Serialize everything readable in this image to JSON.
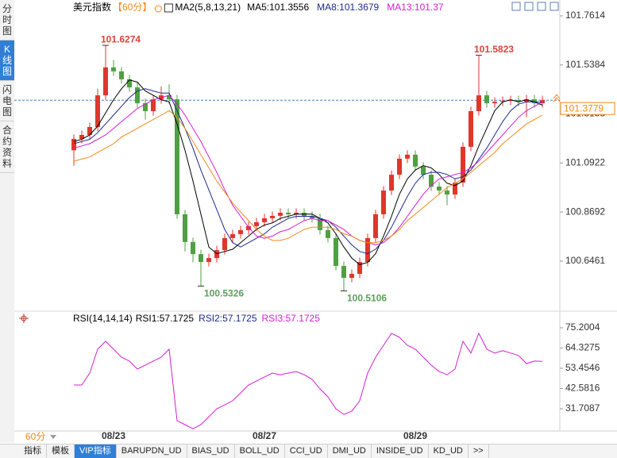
{
  "left_tabs": {
    "items": [
      "分时图",
      "K线图",
      "闪电图",
      "合约资料"
    ],
    "active": 1
  },
  "chart_data": [
    {
      "type": "candlestick",
      "title": "美元指数",
      "period": "【60分】",
      "indicator": "MA2(5,8,13,21)",
      "categories": [
        null,
        null,
        null,
        null,
        null,
        "08/23",
        null,
        null,
        null,
        null,
        null,
        null,
        null,
        null,
        null,
        null,
        null,
        null,
        null,
        null,
        null,
        null,
        null,
        null,
        "08/27",
        null,
        null,
        null,
        null,
        null,
        null,
        null,
        null,
        null,
        null,
        null,
        null,
        null,
        null,
        null,
        null,
        null,
        null,
        "08/29",
        null,
        null,
        null,
        null,
        null,
        null,
        null,
        null,
        null,
        null,
        null,
        null,
        null,
        null,
        null,
        null
      ],
      "candles": [
        [
          101.15,
          101.222,
          101.08,
          101.202
        ],
        [
          101.202,
          101.24,
          101.182,
          101.22
        ],
        [
          101.22,
          101.276,
          101.2,
          101.256
        ],
        [
          101.256,
          101.43,
          101.236,
          101.4
        ],
        [
          101.4,
          101.6274,
          101.38,
          101.527
        ],
        [
          101.527,
          101.56,
          101.489,
          101.509
        ],
        [
          101.509,
          101.529,
          101.453,
          101.473
        ],
        [
          101.473,
          101.493,
          101.416,
          101.436
        ],
        [
          101.436,
          101.456,
          101.344,
          101.364
        ],
        [
          101.364,
          101.384,
          101.29,
          101.328
        ],
        [
          101.328,
          101.402,
          101.308,
          101.382
        ],
        [
          101.382,
          101.44,
          101.362,
          101.4
        ],
        [
          101.4,
          101.45,
          101.362,
          101.382
        ],
        [
          101.382,
          101.402,
          100.839,
          100.859
        ],
        [
          100.859,
          100.879,
          100.69,
          100.733
        ],
        [
          100.733,
          100.753,
          100.64,
          100.678
        ],
        [
          100.678,
          100.698,
          100.5326,
          100.642
        ],
        [
          100.642,
          100.68,
          100.622,
          100.66
        ],
        [
          100.66,
          100.716,
          100.64,
          100.696
        ],
        [
          100.696,
          100.771,
          100.676,
          100.751
        ],
        [
          100.751,
          100.789,
          100.731,
          100.769
        ],
        [
          100.769,
          100.807,
          100.749,
          100.787
        ],
        [
          100.787,
          100.825,
          100.767,
          100.805
        ],
        [
          100.805,
          100.843,
          100.785,
          100.823
        ],
        [
          100.823,
          100.861,
          100.803,
          100.841
        ],
        [
          100.841,
          100.872,
          100.821,
          100.852
        ],
        [
          100.852,
          100.886,
          100.832,
          100.866
        ],
        [
          100.866,
          100.886,
          100.839,
          100.859
        ],
        [
          100.859,
          100.886,
          100.839,
          100.866
        ],
        [
          100.866,
          100.886,
          100.832,
          100.852
        ],
        [
          100.852,
          100.872,
          100.821,
          100.841
        ],
        [
          100.841,
          100.861,
          100.767,
          100.787
        ],
        [
          100.787,
          100.807,
          100.731,
          100.751
        ],
        [
          100.751,
          100.771,
          100.604,
          100.624
        ],
        [
          100.624,
          100.644,
          100.5106,
          100.57
        ],
        [
          100.57,
          100.608,
          100.55,
          100.588
        ],
        [
          100.588,
          100.662,
          100.568,
          100.642
        ],
        [
          100.642,
          100.771,
          100.622,
          100.751
        ],
        [
          100.751,
          100.879,
          100.731,
          100.859
        ],
        [
          100.859,
          100.987,
          100.839,
          100.967
        ],
        [
          100.967,
          101.059,
          100.947,
          101.039
        ],
        [
          101.039,
          101.132,
          101.019,
          101.112
        ],
        [
          101.112,
          101.15,
          101.092,
          101.13
        ],
        [
          101.13,
          101.15,
          101.056,
          101.076
        ],
        [
          101.076,
          101.096,
          101.019,
          101.039
        ],
        [
          101.039,
          101.059,
          100.965,
          100.985
        ],
        [
          100.985,
          101.005,
          100.947,
          100.967
        ],
        [
          100.967,
          100.987,
          100.9,
          100.949
        ],
        [
          100.949,
          101.023,
          100.929,
          101.003
        ],
        [
          101.003,
          101.186,
          100.983,
          101.166
        ],
        [
          101.166,
          101.348,
          101.146,
          101.328
        ],
        [
          101.328,
          101.5823,
          101.308,
          101.4
        ],
        [
          101.4,
          101.42,
          101.344,
          101.364
        ],
        [
          101.364,
          101.391,
          101.344,
          101.371
        ],
        [
          101.371,
          101.395,
          101.351,
          101.375
        ],
        [
          101.375,
          101.398,
          101.355,
          101.378
        ],
        [
          101.378,
          101.398,
          101.351,
          101.371
        ],
        [
          101.371,
          101.402,
          101.3,
          101.382
        ],
        [
          101.382,
          101.402,
          101.344,
          101.364
        ],
        [
          101.364,
          101.398,
          101.344,
          101.378
        ]
      ],
      "up_color": "#e0362c",
      "down_color": "#4ea042",
      "series": [
        {
          "name": "MA5:101.3556",
          "color": "#000000",
          "values": [
            101.19,
            101.2,
            101.22,
            101.26,
            101.32,
            101.38,
            101.43,
            101.47,
            101.46,
            101.42,
            101.4,
            101.38,
            101.37,
            101.27,
            101.15,
            101.01,
            100.86,
            100.71,
            100.68,
            100.69,
            100.7,
            100.73,
            100.76,
            100.79,
            100.81,
            100.82,
            100.84,
            100.85,
            100.86,
            100.86,
            100.86,
            100.84,
            100.82,
            100.77,
            100.71,
            100.66,
            100.63,
            100.64,
            100.68,
            100.76,
            100.85,
            100.95,
            101.02,
            101.06,
            101.08,
            101.07,
            101.04,
            101.0,
            100.99,
            101.01,
            101.08,
            101.17,
            101.25,
            101.33,
            101.37,
            101.38,
            101.37,
            101.38,
            101.37,
            101.3556
          ]
        },
        {
          "name": "MA8:101.3679",
          "color": "#1c2a8c",
          "values": [
            101.18,
            101.19,
            101.2,
            101.23,
            101.27,
            101.31,
            101.35,
            101.39,
            101.42,
            101.43,
            101.42,
            101.41,
            101.41,
            101.33,
            101.25,
            101.16,
            101.06,
            100.97,
            100.88,
            100.79,
            100.73,
            100.71,
            100.73,
            100.75,
            100.77,
            100.8,
            100.82,
            100.84,
            100.85,
            100.85,
            100.85,
            100.84,
            100.83,
            100.8,
            100.76,
            100.72,
            100.69,
            100.68,
            100.7,
            100.74,
            100.8,
            100.87,
            100.94,
            101.0,
            101.04,
            101.05,
            101.05,
            101.04,
            101.02,
            101.03,
            101.06,
            101.11,
            101.16,
            101.22,
            101.28,
            101.33,
            101.36,
            101.37,
            101.37,
            101.3679
          ]
        },
        {
          "name": "MA13:101.37",
          "color": "#d21fd2",
          "values": [
            101.16,
            101.17,
            101.18,
            101.2,
            101.22,
            101.25,
            101.28,
            101.31,
            101.34,
            101.36,
            101.38,
            101.39,
            101.4,
            101.36,
            101.31,
            101.25,
            101.19,
            101.12,
            101.05,
            100.97,
            100.9,
            100.85,
            100.8,
            100.76,
            100.75,
            100.76,
            100.78,
            100.79,
            100.81,
            100.83,
            100.84,
            100.83,
            100.83,
            100.81,
            100.79,
            100.76,
            100.74,
            100.73,
            100.72,
            100.73,
            100.76,
            100.8,
            100.85,
            100.9,
            100.95,
            100.99,
            101.02,
            101.03,
            101.04,
            101.05,
            101.07,
            101.1,
            101.14,
            101.18,
            101.22,
            101.26,
            101.3,
            101.33,
            101.35,
            101.37
          ]
        },
        {
          "color": "#f0891a",
          "values": [
            101.1,
            101.11,
            101.12,
            101.14,
            101.16,
            101.18,
            101.21,
            101.23,
            101.25,
            101.27,
            101.29,
            101.31,
            101.33,
            101.3,
            101.25,
            101.19,
            101.13,
            101.07,
            101.01,
            100.96,
            100.91,
            100.87,
            100.83,
            100.79,
            100.76,
            100.74,
            100.74,
            100.75,
            100.77,
            100.79,
            100.8,
            100.8,
            100.8,
            100.79,
            100.77,
            100.76,
            100.74,
            100.73,
            100.73,
            100.74,
            100.76,
            100.79,
            100.83,
            100.86,
            100.89,
            100.92,
            100.95,
            100.98,
            101.0,
            101.02,
            101.05,
            101.08,
            101.11,
            101.14,
            101.18,
            101.21,
            101.24,
            101.27,
            101.29,
            101.31
          ]
        }
      ],
      "ylim": [
        100.4257,
        101.783
      ],
      "yticks": [
        100.6461,
        100.8692,
        101.0922,
        101.3153,
        101.5384,
        101.7614
      ],
      "annotations": [
        {
          "value": 101.6274,
          "color": "#d8453b"
        },
        {
          "value": 101.5823,
          "color": "#d8453b"
        },
        {
          "value": 100.5326,
          "color": "#5aa05a"
        },
        {
          "value": 100.5106,
          "color": "#5aa05a"
        }
      ],
      "last_price": 101.3779,
      "last_price_color": "#f0891a"
    },
    {
      "type": "line",
      "title": "RSI(14,14,14)",
      "series": [
        {
          "name": "RSI1:57.1725",
          "color": "#000000"
        },
        {
          "name": "RSI2:57.1725",
          "color": "#1c2a8c"
        },
        {
          "name": "RSI3:57.1725",
          "color": "#d21fd2",
          "values": [
            44.5,
            44.5,
            50.9,
            63.7,
            67.9,
            63.7,
            59.4,
            57.3,
            53.0,
            55.2,
            57.3,
            59.4,
            63.7,
            25.3,
            23.2,
            21.0,
            23.2,
            27.4,
            31.7,
            33.8,
            36.0,
            40.2,
            44.5,
            46.6,
            48.8,
            50.9,
            50.0,
            50.9,
            51.7,
            50.0,
            47.5,
            42.4,
            38.1,
            31.7,
            28.7,
            30.4,
            36.0,
            50.9,
            59.4,
            65.8,
            72.2,
            70.1,
            65.8,
            63.7,
            59.4,
            55.2,
            51.7,
            50.0,
            53.0,
            67.9,
            61.6,
            72.2,
            63.7,
            61.6,
            62.9,
            61.6,
            60.3,
            56.0,
            57.3,
            57.1725
          ]
        }
      ],
      "ylim": [
        20,
        80.7
      ],
      "yticks": [
        31.7087,
        42.5816,
        53.4546,
        64.3275,
        75.2004
      ]
    }
  ],
  "period_selector": "60分",
  "toolbar": {
    "tabs": [
      "指标",
      "模板",
      "VIP指标",
      "BARUPDN_UD",
      "BIAS_UD",
      "BOLL_UD",
      "CCI_UD",
      "DMI_UD",
      "INSIDE_UD",
      "KD_UD",
      ">>"
    ],
    "active": 2
  }
}
